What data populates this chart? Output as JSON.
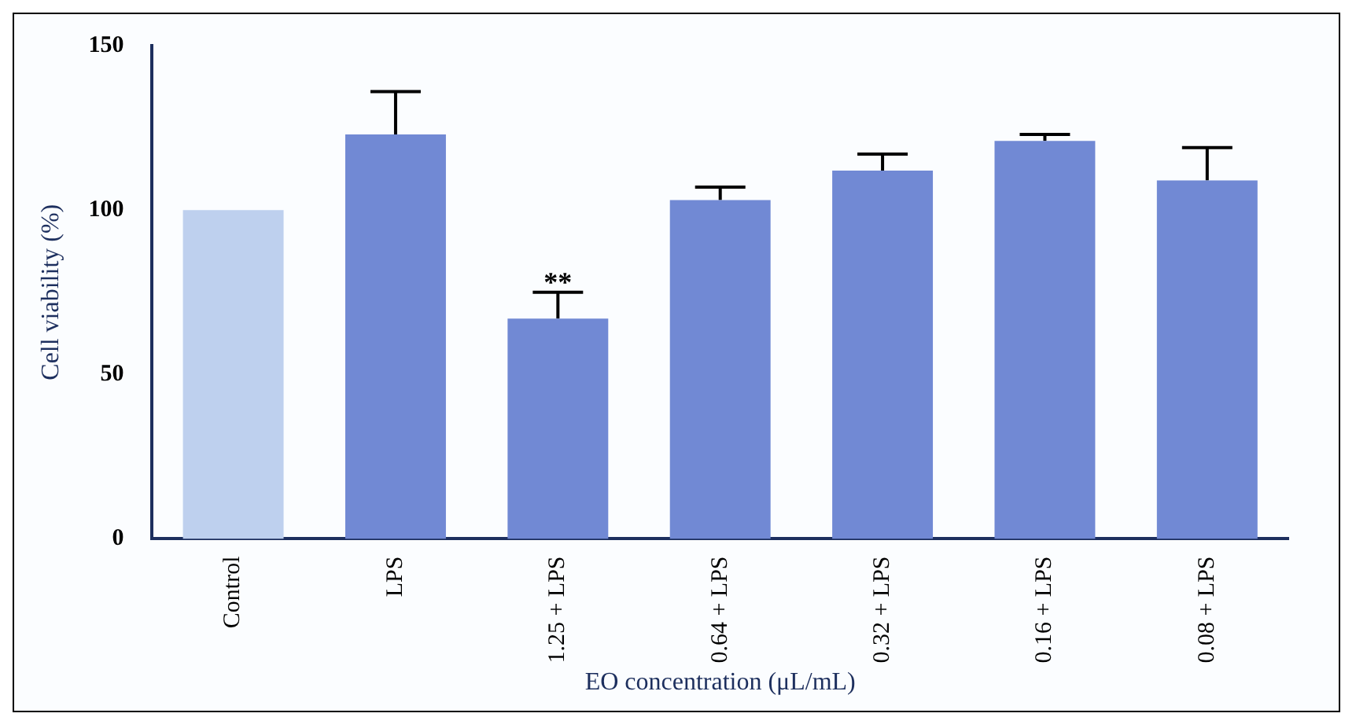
{
  "chart_data": {
    "type": "bar",
    "xlabel": "EO concentration (μL/mL)",
    "ylabel": "Cell viability (%)",
    "categories": [
      "Control",
      "LPS",
      "1.25 + LPS",
      "0.64 + LPS",
      "0.32 + LPS",
      "0.16 + LPS",
      "0.08 + LPS"
    ],
    "values": [
      100,
      123,
      67,
      103,
      112,
      121,
      109
    ],
    "colors": [
      "#bed0ee",
      "#7189d4",
      "#7189d4",
      "#7189d4",
      "#7189d4",
      "#7189d4",
      "#7189d4"
    ],
    "errors": [
      null,
      [
        123,
        136
      ],
      [
        67,
        75
      ],
      [
        103,
        107
      ],
      [
        112,
        117
      ],
      [
        121,
        123
      ],
      [
        109,
        119
      ]
    ],
    "annotations": [
      {
        "text": "**",
        "x": "1.25 + LPS",
        "y": 77
      }
    ],
    "ylim": [
      0,
      150
    ],
    "yticks": [
      0,
      50,
      100,
      150
    ],
    "grid": false,
    "legend": false
  }
}
